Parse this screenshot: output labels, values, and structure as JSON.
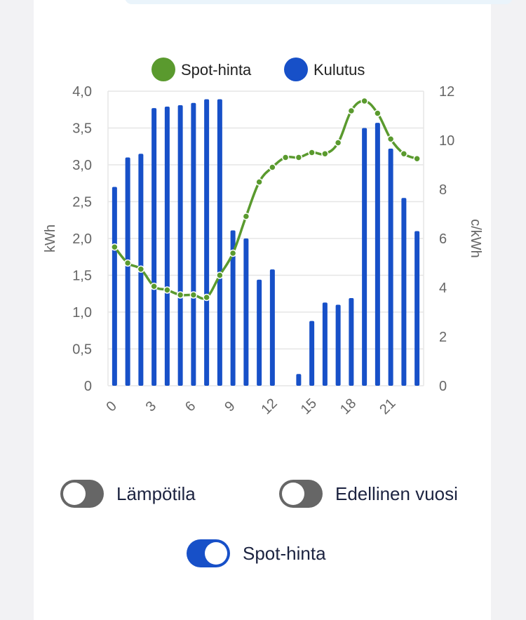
{
  "chart_data": {
    "type": "bar+line",
    "categories": [
      0,
      1,
      2,
      3,
      4,
      5,
      6,
      7,
      8,
      9,
      10,
      11,
      12,
      13,
      14,
      15,
      16,
      17,
      18,
      19,
      20,
      21,
      22,
      23
    ],
    "x_tick_labels": [
      "0",
      "3",
      "6",
      "9",
      "12",
      "15",
      "18",
      "21"
    ],
    "series": [
      {
        "name": "Kulutus",
        "type": "bar",
        "axis": "left",
        "color": "#1750c8",
        "values": [
          2.7,
          3.1,
          3.15,
          3.77,
          3.79,
          3.81,
          3.84,
          3.89,
          3.89,
          2.11,
          2.0,
          1.44,
          1.58,
          0,
          0.16,
          0.88,
          1.13,
          1.1,
          1.19,
          3.5,
          3.57,
          3.22,
          2.55,
          2.1
        ]
      },
      {
        "name": "Spot-hinta",
        "type": "line",
        "axis": "right",
        "color": "#5a9a2e",
        "values": [
          5.65,
          5.0,
          4.75,
          4.05,
          3.9,
          3.7,
          3.7,
          3.6,
          4.5,
          5.4,
          6.9,
          8.3,
          8.9,
          9.3,
          9.3,
          9.5,
          9.45,
          9.9,
          11.2,
          11.6,
          11.1,
          10.05,
          9.45,
          9.25
        ]
      }
    ],
    "y_left": {
      "label": "kWh",
      "range": [
        0,
        4
      ],
      "ticks": [
        "0",
        "0,5",
        "1,0",
        "1,5",
        "2,0",
        "2,5",
        "3,0",
        "3,5",
        "4,0"
      ]
    },
    "y_right": {
      "label": "c/kWh",
      "range": [
        0,
        12
      ],
      "ticks": [
        "0",
        "2",
        "4",
        "6",
        "8",
        "10",
        "12"
      ]
    },
    "legend": [
      {
        "label": "Spot-hinta",
        "color": "#5a9a2e"
      },
      {
        "label": "Kulutus",
        "color": "#1750c8"
      }
    ],
    "legend_position": "top-center",
    "grid": true
  },
  "toggles": [
    {
      "label": "Lämpötila",
      "on": false
    },
    {
      "label": "Edellinen vuosi",
      "on": false
    },
    {
      "label": "Spot-hinta",
      "on": true
    }
  ]
}
